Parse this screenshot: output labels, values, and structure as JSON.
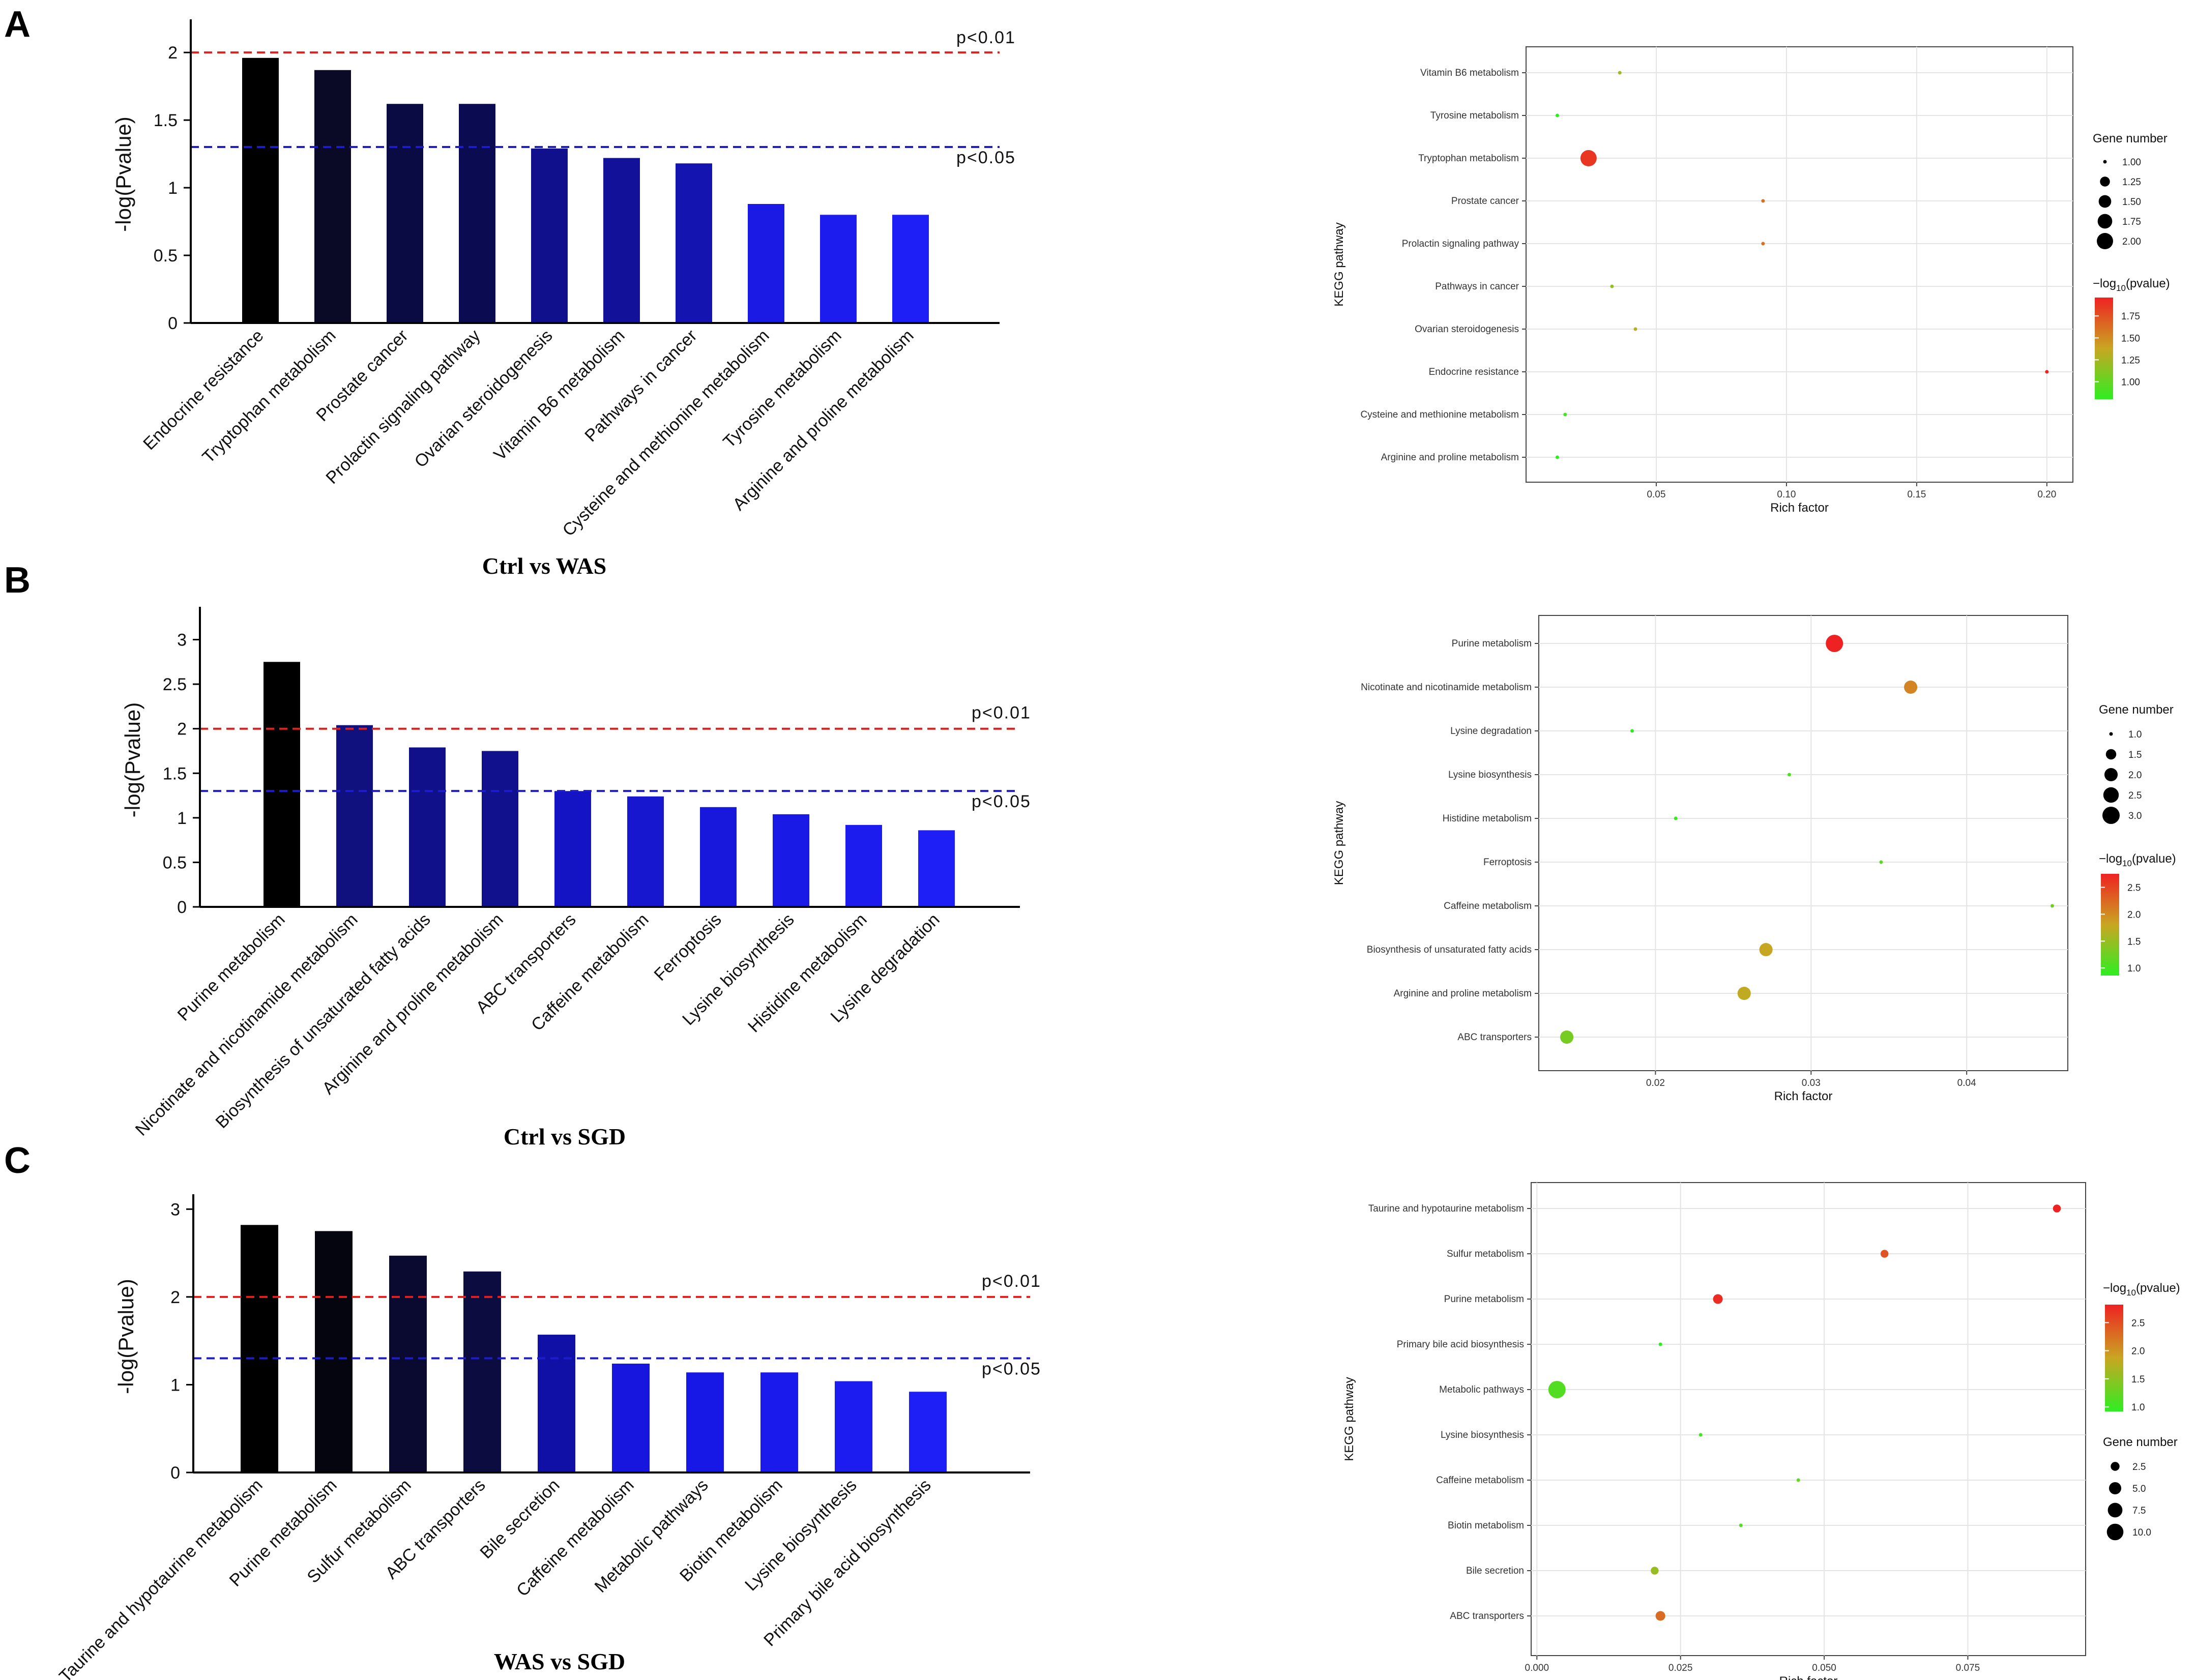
{
  "panels": [
    {
      "letter": "A",
      "caption": "Ctrl  vs WAS",
      "bar": {
        "type": "bar",
        "ylabel": "-log(Pvalue)",
        "ylim": [
          0,
          2.2
        ],
        "yticks": [
          0,
          0.5,
          1,
          1.5,
          2
        ],
        "categories": [
          "Endocrine resistance",
          "Tryptophan metabolism",
          "Prostate cancer",
          "Prolactin signaling pathway",
          "Ovarian steroidogenesis",
          "Vitamin B6 metabolism",
          "Pathways in cancer",
          "Cysteine and methionine metabolism",
          "Tyrosine metabolism",
          "Arginine and proline metabolism"
        ],
        "values": [
          1.96,
          1.87,
          1.62,
          1.62,
          1.29,
          1.22,
          1.18,
          0.88,
          0.8,
          0.8
        ],
        "colors": [
          "#000000",
          "#0a0a26",
          "#0b0b44",
          "#0b0b52",
          "#10108c",
          "#11119a",
          "#1414b0",
          "#1a1ae4",
          "#1c1cee",
          "#1e1ef6"
        ],
        "thresholds": [
          {
            "label": "p<0.01",
            "value": 2,
            "color": "#e0201e"
          },
          {
            "label": "p<0.05",
            "value": 1.301,
            "color": "#1c1ccc"
          }
        ]
      },
      "bubble": {
        "type": "scatter",
        "xlabel": "Rich factor",
        "ylabel": "KEGG pathway",
        "xlim": [
          0.0,
          0.21
        ],
        "xticks": [
          "0.05",
          "0.10",
          "0.15",
          "0.20"
        ],
        "xtick_values": [
          0.05,
          0.1,
          0.15,
          0.2
        ],
        "categories": [
          "Vitamin B6 metabolism",
          "Tyrosine metabolism",
          "Tryptophan metabolism",
          "Prostate cancer",
          "Prolactin signaling pathway",
          "Pathways in cancer",
          "Ovarian steroidogenesis",
          "Endocrine resistance",
          "Cysteine and methionine metabolism",
          "Arginine and proline metabolism"
        ],
        "rich_factor": [
          0.036,
          0.012,
          0.024,
          0.091,
          0.091,
          0.033,
          0.042,
          0.2,
          0.015,
          0.012
        ],
        "gene_number": [
          1,
          1,
          2,
          1,
          1,
          1,
          1,
          1,
          1,
          1
        ],
        "neg_log10_p": [
          1.22,
          0.8,
          1.87,
          1.62,
          1.62,
          1.18,
          1.29,
          1.96,
          0.88,
          0.8
        ],
        "color_range": [
          0.8,
          1.96
        ],
        "legend_order": "size-first",
        "size_legend": {
          "title": "Gene number",
          "labels": [
            "1.00",
            "1.25",
            "1.50",
            "1.75",
            "2.00"
          ],
          "values": [
            1,
            1.25,
            1.5,
            1.75,
            2
          ],
          "range": [
            1,
            2
          ]
        },
        "color_legend": {
          "title": "−log",
          "title_sub": "10",
          "title_tail": "(pvalue)",
          "labels": [
            "1.75",
            "1.50",
            "1.25",
            "1.00"
          ],
          "values": [
            1.75,
            1.5,
            1.25,
            1.0
          ]
        }
      }
    },
    {
      "letter": "B",
      "caption": "Ctrl  vs SGD",
      "bar": {
        "type": "bar",
        "ylabel": "-log(Pvalue)",
        "ylim": [
          0,
          3.3
        ],
        "yticks": [
          0,
          0.5,
          1,
          1.5,
          2,
          2.5,
          3
        ],
        "categories": [
          "Purine metabolism",
          "Nicotinate and nicotinamide metabolism",
          "Biosynthesis of unsaturated fatty acids",
          "Arginine and proline metabolism",
          "ABC transporters",
          "Caffeine metabolism",
          "Ferroptosis",
          "Lysine biosynthesis",
          "Histidine metabolism",
          "Lysine degradation"
        ],
        "values": [
          2.75,
          2.04,
          1.79,
          1.75,
          1.3,
          1.24,
          1.12,
          1.04,
          0.92,
          0.86
        ],
        "colors": [
          "#000000",
          "#10107e",
          "#10108a",
          "#11118e",
          "#1414c4",
          "#1717d0",
          "#1818dc",
          "#1a1ae6",
          "#1c1cee",
          "#1e1ef6"
        ],
        "thresholds": [
          {
            "label": "p<0.01",
            "value": 2,
            "color": "#e0201e"
          },
          {
            "label": "p<0.05",
            "value": 1.301,
            "color": "#1c1ccc"
          }
        ]
      },
      "bubble": {
        "type": "scatter",
        "xlabel": "Rich factor",
        "ylabel": "KEGG pathway",
        "xlim": [
          0.0125,
          0.0465
        ],
        "xticks": [
          "0.02",
          "0.03",
          "0.04"
        ],
        "xtick_values": [
          0.02,
          0.03,
          0.04
        ],
        "categories": [
          "Purine metabolism",
          "Nicotinate and nicotinamide metabolism",
          "Lysine degradation",
          "Lysine biosynthesis",
          "Histidine metabolism",
          "Ferroptosis",
          "Caffeine metabolism",
          "Biosynthesis of unsaturated fatty acids",
          "Arginine and proline metabolism",
          "ABC transporters"
        ],
        "rich_factor": [
          0.0315,
          0.0364,
          0.0185,
          0.0286,
          0.0213,
          0.0345,
          0.0455,
          0.0271,
          0.0257,
          0.0143
        ],
        "gene_number": [
          3,
          2,
          1,
          1,
          1,
          1,
          1,
          2,
          2,
          2
        ],
        "neg_log10_p": [
          2.75,
          2.04,
          0.86,
          1.04,
          0.92,
          1.12,
          1.24,
          1.79,
          1.75,
          1.3
        ],
        "color_range": [
          0.86,
          2.75
        ],
        "legend_order": "size-first",
        "size_legend": {
          "title": "Gene number",
          "labels": [
            "1.0",
            "1.5",
            "2.0",
            "2.5",
            "3.0"
          ],
          "values": [
            1,
            1.5,
            2,
            2.5,
            3
          ],
          "range": [
            1,
            3
          ]
        },
        "color_legend": {
          "title": "−log",
          "title_sub": "10",
          "title_tail": "(pvalue)",
          "labels": [
            "2.5",
            "2.0",
            "1.5",
            "1.0"
          ],
          "values": [
            2.5,
            2.0,
            1.5,
            1.0
          ]
        }
      }
    },
    {
      "letter": "C",
      "caption": "WAS  vs SGD",
      "bar": {
        "type": "bar",
        "ylabel": "-log(Pvalue)",
        "ylim": [
          0,
          3.1
        ],
        "yticks": [
          0,
          1,
          2,
          3
        ],
        "categories": [
          "Taurine and hypotaurine metabolism",
          "Purine metabolism",
          "Sulfur metabolism",
          "ABC transporters",
          "Bile secretion",
          "Caffeine metabolism",
          "Metabolic pathways",
          "Biotin metabolism",
          "Lysine biosynthesis",
          "Primary bile acid biosynthesis"
        ],
        "values": [
          2.82,
          2.75,
          2.47,
          2.29,
          1.57,
          1.24,
          1.14,
          1.14,
          1.04,
          0.92
        ],
        "colors": [
          "#000000",
          "#05050f",
          "#0a0a30",
          "#0c0c40",
          "#1010a6",
          "#1616de",
          "#1818e6",
          "#1a1aec",
          "#1c1cf0",
          "#1e1ef6"
        ],
        "thresholds": [
          {
            "label": "p<0.01",
            "value": 2,
            "color": "#e0201e"
          },
          {
            "label": "p<0.05",
            "value": 1.301,
            "color": "#1c1ccc"
          }
        ]
      },
      "bubble": {
        "type": "scatter",
        "xlabel": "Rich factor",
        "ylabel": "KEGG pathway",
        "xlim": [
          -0.001,
          0.0955
        ],
        "xticks": [
          "0.000",
          "0.025",
          "0.050",
          "0.075"
        ],
        "xtick_values": [
          0.0,
          0.025,
          0.05,
          0.075
        ],
        "categories": [
          "Taurine and hypotaurine metabolism",
          "Sulfur metabolism",
          "Purine metabolism",
          "Primary bile acid biosynthesis",
          "Metabolic pathways",
          "Lysine biosynthesis",
          "Caffeine metabolism",
          "Biotin metabolism",
          "Bile secretion",
          "ABC transporters"
        ],
        "rich_factor": [
          0.0905,
          0.0605,
          0.0315,
          0.0215,
          0.0035,
          0.0285,
          0.0455,
          0.0355,
          0.0205,
          0.0215
        ],
        "gene_number": [
          2,
          2,
          3,
          1,
          11,
          1,
          1,
          1,
          2,
          3
        ],
        "neg_log10_p": [
          2.82,
          2.47,
          2.75,
          0.92,
          1.14,
          1.04,
          1.24,
          1.14,
          1.57,
          2.29
        ],
        "color_range": [
          0.92,
          2.82
        ],
        "legend_order": "color-first",
        "size_legend": {
          "title": "Gene number",
          "labels": [
            "2.5",
            "5.0",
            "7.5",
            "10.0"
          ],
          "values": [
            2.5,
            5,
            7.5,
            10
          ],
          "range": [
            1,
            11
          ]
        },
        "color_legend": {
          "title": "−log",
          "title_sub": "10",
          "title_tail": "(pvalue)",
          "labels": [
            "2.5",
            "2.0",
            "1.5",
            "1.0"
          ],
          "values": [
            2.5,
            2.0,
            1.5,
            1.0
          ]
        }
      }
    }
  ]
}
